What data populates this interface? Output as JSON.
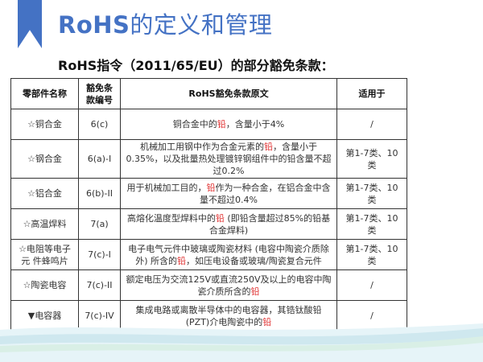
{
  "slide": {
    "title_latin": "RoHS",
    "title_cn": "的定义和管理",
    "subtitle": "RoHS指令（2011/65/EU）的部分豁免条款：",
    "accent_color": "#4472c4",
    "highlight_color": "#e03030"
  },
  "table": {
    "headers": [
      "零部件名称",
      "豁免条款编号",
      "RoHS豁免条款原文",
      "适用于"
    ],
    "rows": [
      {
        "part": "☆铜合金",
        "code": "6(c)",
        "text_before": "铜合金中的",
        "highlight": "铅",
        "text_after": "，含量小于4%",
        "applies": "/"
      },
      {
        "part": "☆钢合金",
        "code": "6(a)-I",
        "text_before": "机械加工用钢中作为合金元素的",
        "highlight": "铅",
        "text_after": "，含量小于0.35%，以及批量热处理镀锌钢组件中的铅含量不超过0.2%",
        "applies": "第1-7类、10类"
      },
      {
        "part": "☆铝合金",
        "code": "6(b)-II",
        "text_before": "用于机械加工目的，",
        "highlight": "铅",
        "text_after": "作为一种合金，在铝合金中含量不超过0.4%",
        "applies": "第1-7类、10类"
      },
      {
        "part": "☆高温焊料",
        "code": "7(a)",
        "text_before": "高熔化温度型焊料中的",
        "highlight": "铅",
        "text_after": " (即铅含量超过85%的铅基合金焊料)",
        "applies": "第1-7类、10类"
      },
      {
        "part": "☆电阻等电子元 件蜂鸣片",
        "code": "7(c)-I",
        "text_before": "电子电气元件中玻璃或陶瓷材料 (电容中陶瓷介质除外) 所含的",
        "highlight": "铅",
        "text_after": "，如压电设备或玻璃/陶瓷复合元件",
        "applies": "第1-7类、10类"
      },
      {
        "part": "☆陶瓷电容",
        "code": "7(c)-II",
        "text_before": "额定电压为交流125V或直流250V及以上的电容中陶瓷介质所含的",
        "highlight": "铅",
        "text_after": "",
        "applies": "/"
      },
      {
        "part": "▼电容器",
        "code": "7(c)-IV",
        "text_before": "集成电路或离散半导体中的电容器，其锆钛酸铅(PZT)介电陶瓷中的",
        "highlight": "铅",
        "text_after": "",
        "applies": "/"
      }
    ]
  }
}
